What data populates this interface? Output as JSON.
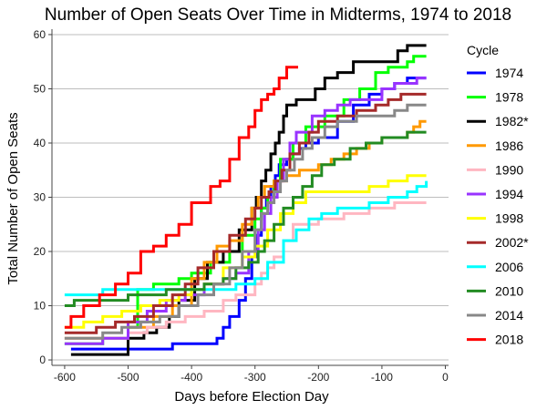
{
  "chart_data": {
    "type": "line",
    "title": "Number of Open Seats Over Time in Midterms, 1974 to 2018",
    "xlabel": "Days before Election Day",
    "ylabel": "Total Number of Open Seats",
    "xlim": [
      -620,
      5
    ],
    "ylim": [
      -1,
      61
    ],
    "x_ticks": [
      -600,
      -500,
      -400,
      -300,
      -200,
      -100,
      0
    ],
    "y_ticks": [
      0,
      10,
      20,
      30,
      40,
      50,
      60
    ],
    "grid": "horizontal",
    "line_style": "step",
    "legend_title": "Cycle",
    "legend_position": "right",
    "series": [
      {
        "name": "1974",
        "color": "#0000ff",
        "x": [
          -590,
          -540,
          -430,
          -360,
          -350,
          -340,
          -325,
          -315,
          -305,
          -298,
          -290,
          -282,
          -275,
          -268,
          -262,
          -250,
          -240,
          -230,
          -220,
          -200,
          -170,
          -145,
          -120,
          -100,
          -80,
          -60,
          -45,
          -30
        ],
        "y": [
          2,
          2,
          3,
          4,
          6,
          8,
          11,
          15,
          19,
          23,
          28,
          30,
          32,
          34,
          36,
          37,
          38,
          39,
          40,
          41,
          44,
          47,
          49,
          50,
          51,
          52,
          52,
          52
        ]
      },
      {
        "name": "1978",
        "color": "#00ff00",
        "x": [
          -600,
          -590,
          -540,
          -500,
          -485,
          -460,
          -420,
          -400,
          -370,
          -340,
          -320,
          -300,
          -290,
          -280,
          -270,
          -260,
          -240,
          -220,
          -190,
          -160,
          -135,
          -110,
          -90,
          -75,
          -60,
          -50,
          -30
        ],
        "y": [
          3,
          3,
          4,
          6,
          13,
          14,
          15,
          16,
          18,
          20,
          23,
          26,
          28,
          30,
          33,
          37,
          40,
          43,
          45,
          48,
          50,
          53,
          54,
          54,
          55,
          56,
          56
        ]
      },
      {
        "name": "1982*",
        "color": "#000000",
        "x": [
          -590,
          -560,
          -520,
          -500,
          -475,
          -455,
          -435,
          -420,
          -395,
          -375,
          -350,
          -325,
          -305,
          -298,
          -290,
          -283,
          -275,
          -268,
          -262,
          -255,
          -250,
          -235,
          -220,
          -205,
          -190,
          -170,
          -145,
          -130,
          -85,
          -75,
          -60,
          -45,
          -30
        ],
        "y": [
          1,
          1,
          1,
          4,
          5,
          6,
          8,
          11,
          15,
          18,
          20,
          24,
          28,
          30,
          33,
          35,
          38,
          40,
          42,
          45,
          47,
          48,
          48,
          50,
          52,
          53,
          55,
          55,
          55,
          57,
          58,
          58,
          58
        ]
      },
      {
        "name": "1986",
        "color": "#ff9900",
        "x": [
          -600,
          -560,
          -500,
          -460,
          -430,
          -400,
          -380,
          -360,
          -340,
          -320,
          -305,
          -295,
          -285,
          -270,
          -250,
          -230,
          -200,
          -180,
          -160,
          -140,
          -120,
          -100,
          -80,
          -60,
          -50,
          -40,
          -30
        ],
        "y": [
          4,
          4,
          6,
          8,
          10,
          15,
          18,
          21,
          22,
          25,
          28,
          30,
          32,
          33,
          34,
          35,
          36,
          37,
          38,
          39,
          40,
          41,
          41,
          42,
          43,
          44,
          44
        ]
      },
      {
        "name": "1990",
        "color": "#ffb6c1",
        "x": [
          -600,
          -560,
          -500,
          -470,
          -440,
          -410,
          -380,
          -350,
          -330,
          -300,
          -290,
          -280,
          -270,
          -255,
          -240,
          -220,
          -200,
          -180,
          -160,
          -140,
          -120,
          -100,
          -80,
          -60,
          -45,
          -30
        ],
        "y": [
          4,
          4,
          5,
          6,
          7,
          8,
          9,
          11,
          12,
          14,
          16,
          17,
          19,
          22,
          25,
          25,
          26,
          26,
          27,
          27,
          28,
          28,
          29,
          29,
          29,
          29
        ]
      },
      {
        "name": "1994",
        "color": "#9933ff",
        "x": [
          -600,
          -580,
          -540,
          -500,
          -470,
          -440,
          -410,
          -380,
          -350,
          -330,
          -310,
          -295,
          -285,
          -275,
          -265,
          -255,
          -245,
          -235,
          -210,
          -190,
          -170,
          -150,
          -120,
          -100,
          -80,
          -60,
          -45,
          -30
        ],
        "y": [
          3,
          3,
          4,
          7,
          9,
          11,
          12,
          14,
          15,
          16,
          20,
          24,
          27,
          30,
          33,
          37,
          40,
          42,
          45,
          46,
          47,
          48,
          48,
          50,
          51,
          51,
          52,
          52
        ]
      },
      {
        "name": "1998",
        "color": "#ffff00",
        "x": [
          -600,
          -570,
          -540,
          -510,
          -480,
          -450,
          -420,
          -400,
          -380,
          -350,
          -320,
          -300,
          -280,
          -260,
          -240,
          -220,
          -180,
          -150,
          -120,
          -90,
          -60,
          -45,
          -30
        ],
        "y": [
          6,
          7,
          8,
          9,
          10,
          11,
          12,
          13,
          14,
          17,
          19,
          21,
          24,
          27,
          29,
          31,
          31,
          31,
          32,
          33,
          34,
          34,
          34
        ]
      },
      {
        "name": "2002*",
        "color": "#a52a2a",
        "x": [
          -600,
          -580,
          -550,
          -520,
          -490,
          -460,
          -430,
          -410,
          -390,
          -365,
          -340,
          -315,
          -300,
          -290,
          -278,
          -268,
          -258,
          -245,
          -230,
          -215,
          -200,
          -170,
          -140,
          -110,
          -90,
          -70,
          -50,
          -30
        ],
        "y": [
          5,
          5,
          6,
          7,
          8,
          10,
          12,
          14,
          17,
          20,
          23,
          26,
          28,
          30,
          31,
          33,
          35,
          38,
          40,
          42,
          44,
          45,
          46,
          47,
          48,
          49,
          49,
          49
        ]
      },
      {
        "name": "2006",
        "color": "#00ffff",
        "x": [
          -600,
          -570,
          -540,
          -510,
          -480,
          -450,
          -420,
          -390,
          -360,
          -330,
          -300,
          -280,
          -255,
          -235,
          -215,
          -195,
          -170,
          -150,
          -120,
          -90,
          -60,
          -45,
          -30
        ],
        "y": [
          12,
          12,
          13,
          13,
          13,
          13,
          13,
          13,
          13,
          14,
          15,
          18,
          22,
          24,
          26,
          27,
          28,
          28,
          29,
          30,
          31,
          32,
          33
        ]
      },
      {
        "name": "2010",
        "color": "#228b22",
        "x": [
          -600,
          -585,
          -560,
          -530,
          -500,
          -470,
          -440,
          -410,
          -380,
          -350,
          -330,
          -310,
          -295,
          -285,
          -270,
          -255,
          -240,
          -225,
          -210,
          -195,
          -175,
          -150,
          -125,
          -100,
          -80,
          -60,
          -45,
          -30
        ],
        "y": [
          10,
          11,
          11,
          11,
          12,
          12,
          13,
          13,
          14,
          15,
          17,
          18,
          20,
          22,
          25,
          28,
          30,
          32,
          34,
          36,
          37,
          39,
          40,
          41,
          41,
          42,
          42,
          42
        ]
      },
      {
        "name": "2014",
        "color": "#888888",
        "x": [
          -600,
          -570,
          -540,
          -510,
          -480,
          -450,
          -420,
          -390,
          -365,
          -340,
          -320,
          -300,
          -290,
          -280,
          -270,
          -260,
          -250,
          -238,
          -225,
          -210,
          -190,
          -170,
          -140,
          -110,
          -80,
          -60,
          -45,
          -30
        ],
        "y": [
          4,
          4,
          5,
          6,
          7,
          8,
          10,
          12,
          14,
          17,
          20,
          24,
          27,
          29,
          31,
          33,
          35,
          37,
          39,
          41,
          43,
          44,
          45,
          45,
          46,
          47,
          47,
          47
        ]
      },
      {
        "name": "2018",
        "color": "#ff0000",
        "x": [
          -600,
          -590,
          -570,
          -545,
          -520,
          -500,
          -480,
          -460,
          -440,
          -420,
          -400,
          -385,
          -370,
          -355,
          -340,
          -325,
          -310,
          -300,
          -290,
          -280,
          -270,
          -262,
          -250,
          -242,
          -232
        ],
        "y": [
          6,
          8,
          10,
          12,
          14,
          16,
          20,
          21,
          23,
          25,
          29,
          29,
          32,
          33,
          37,
          41,
          43,
          46,
          48,
          49,
          50,
          52,
          54,
          54,
          54
        ]
      }
    ]
  }
}
